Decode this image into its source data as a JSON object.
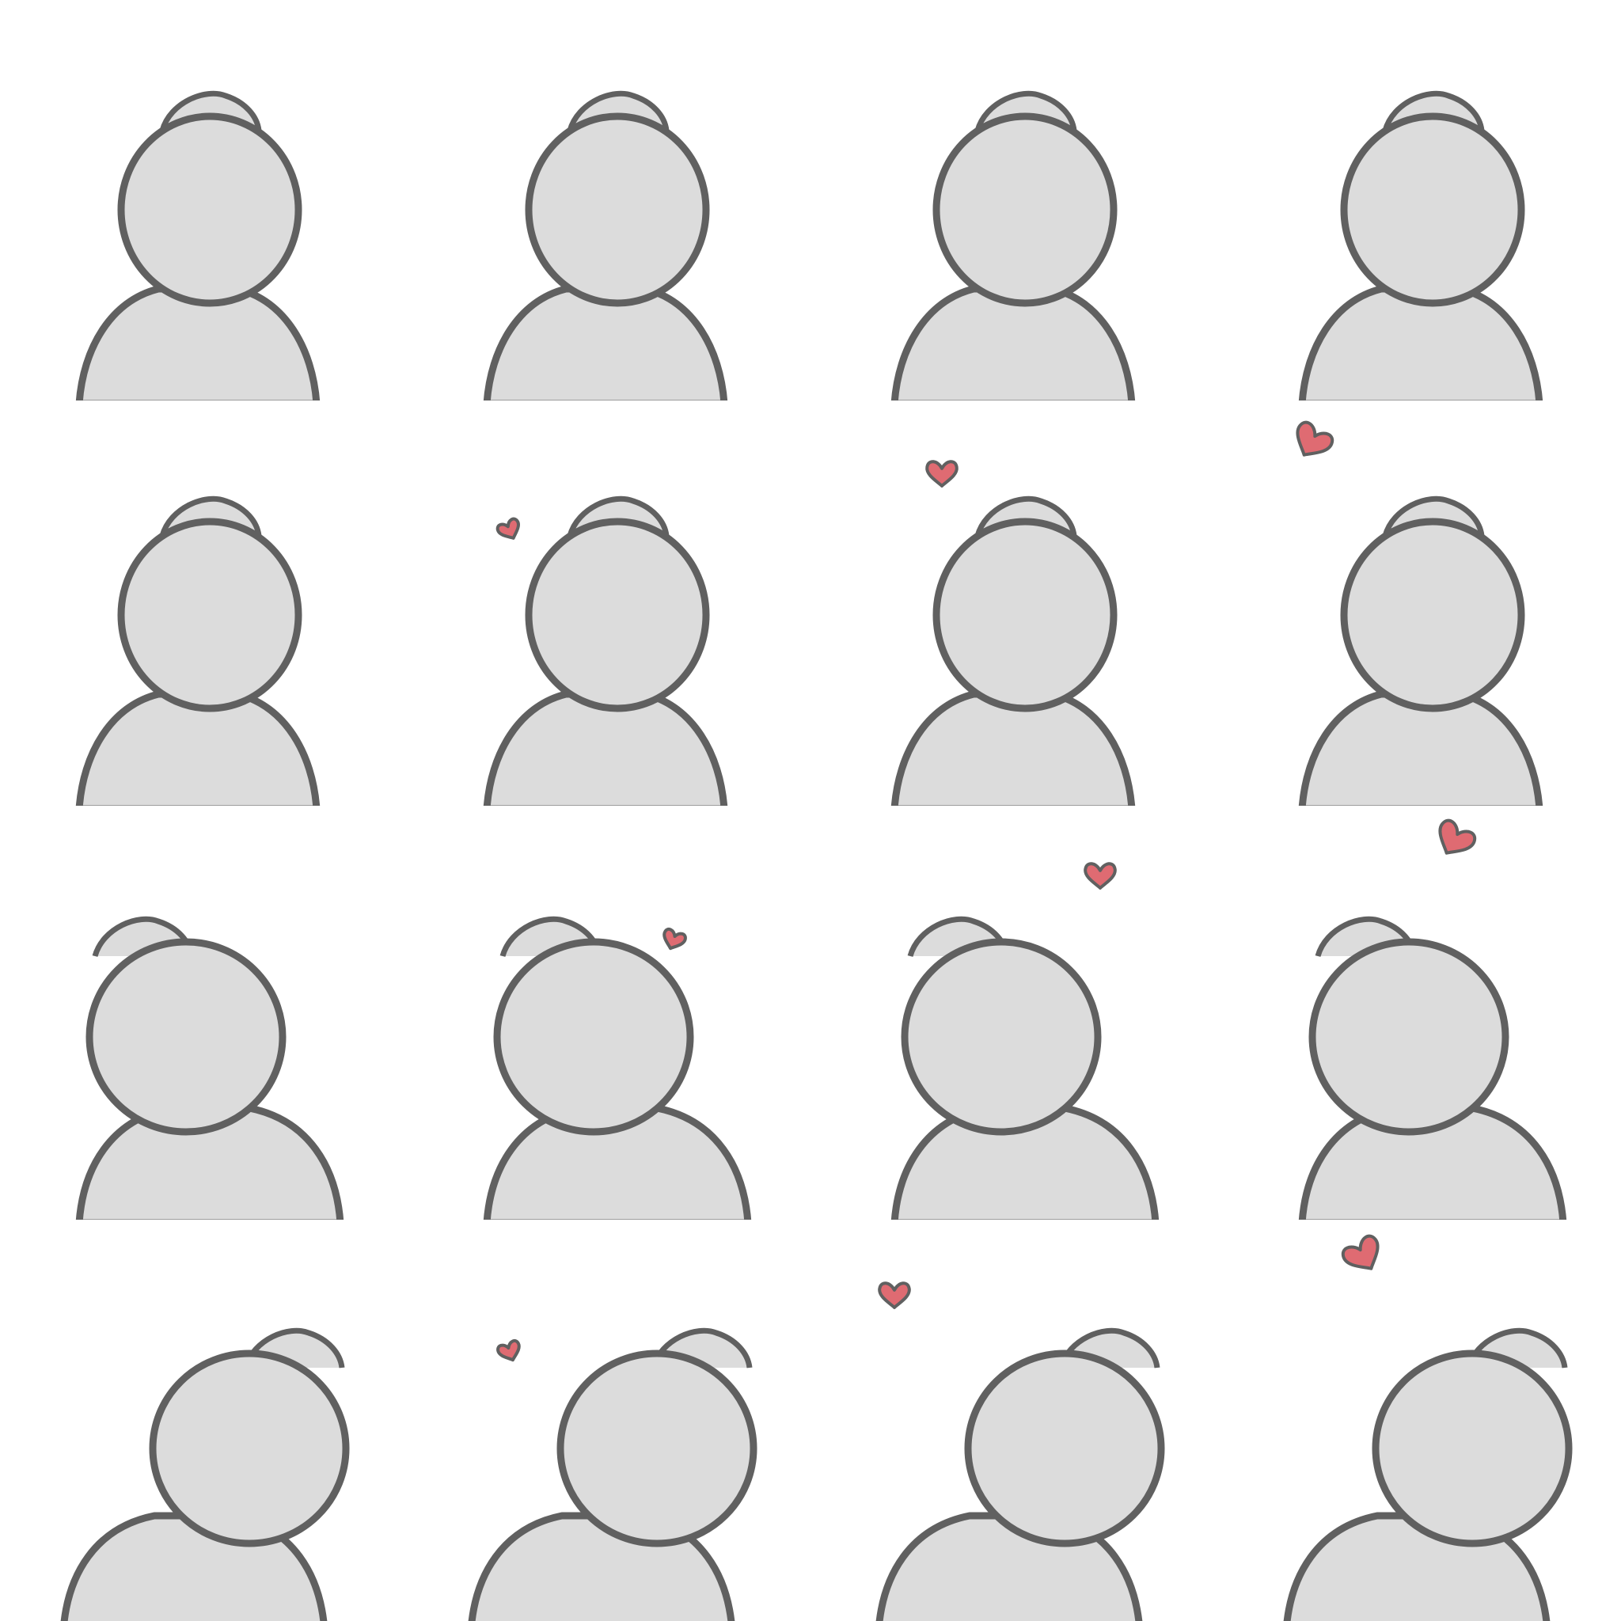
{
  "sheet": {
    "rows": 4,
    "columns": 4,
    "colors": {
      "background": "#ffffff",
      "figure_fill": "#dcdcdc",
      "outline": "#606060",
      "heart_fill": "#df6b72"
    }
  },
  "frames": [
    {
      "row": 1,
      "col": 1,
      "heart": "none",
      "view": "front"
    },
    {
      "row": 1,
      "col": 2,
      "heart": "none",
      "view": "front"
    },
    {
      "row": 1,
      "col": 3,
      "heart": "none",
      "view": "front"
    },
    {
      "row": 1,
      "col": 4,
      "heart": "none",
      "view": "front"
    },
    {
      "row": 2,
      "col": 1,
      "heart": "none",
      "view": "front"
    },
    {
      "row": 2,
      "col": 2,
      "heart": "small",
      "view": "front"
    },
    {
      "row": 2,
      "col": 3,
      "heart": "medium",
      "view": "front"
    },
    {
      "row": 2,
      "col": 4,
      "heart": "large",
      "view": "front"
    },
    {
      "row": 3,
      "col": 1,
      "heart": "none",
      "view": "three-quarter-left"
    },
    {
      "row": 3,
      "col": 2,
      "heart": "small",
      "view": "three-quarter-left"
    },
    {
      "row": 3,
      "col": 3,
      "heart": "medium",
      "view": "three-quarter-left"
    },
    {
      "row": 3,
      "col": 4,
      "heart": "large",
      "view": "three-quarter-left"
    },
    {
      "row": 4,
      "col": 1,
      "heart": "none",
      "view": "three-quarter-right"
    },
    {
      "row": 4,
      "col": 2,
      "heart": "small",
      "view": "three-quarter-right"
    },
    {
      "row": 4,
      "col": 3,
      "heart": "medium",
      "view": "three-quarter-right"
    },
    {
      "row": 4,
      "col": 4,
      "heart": "large",
      "view": "three-quarter-right"
    }
  ]
}
